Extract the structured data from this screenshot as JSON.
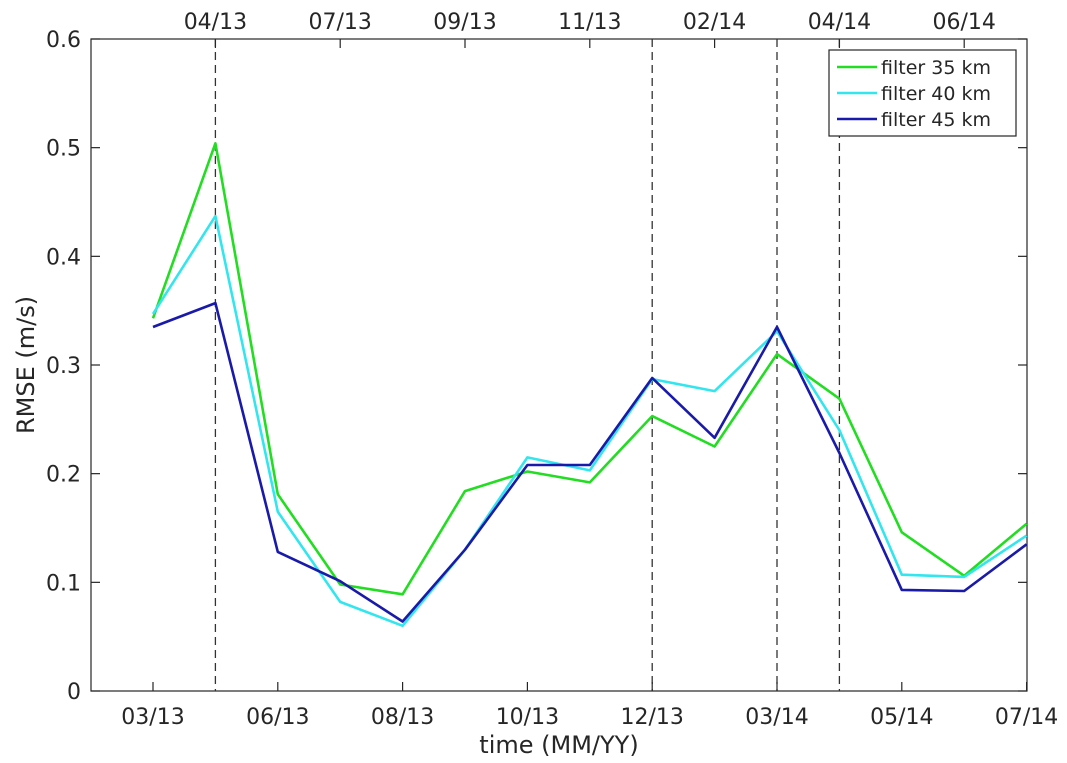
{
  "chart_data": {
    "type": "line",
    "xlabel": "time (MM/YY)",
    "ylabel": "RMSE (m/s)",
    "ylim": [
      0,
      0.6
    ],
    "yticks": [
      "0",
      "0.1",
      "0.2",
      "0.3",
      "0.4",
      "0.5",
      "0.6"
    ],
    "ytick_values": [
      0,
      0.1,
      0.2,
      0.3,
      0.4,
      0.5,
      0.6
    ],
    "x_count": 15,
    "bottom_ticks": [
      {
        "i": 0,
        "label": "03/13"
      },
      {
        "i": 2,
        "label": "06/13"
      },
      {
        "i": 4,
        "label": "08/13"
      },
      {
        "i": 6,
        "label": "10/13"
      },
      {
        "i": 8,
        "label": "12/13"
      },
      {
        "i": 10,
        "label": "03/14"
      },
      {
        "i": 12,
        "label": "05/14"
      },
      {
        "i": 14,
        "label": "07/14"
      }
    ],
    "top_ticks": [
      {
        "i": 1,
        "label": "04/13"
      },
      {
        "i": 3,
        "label": "07/13"
      },
      {
        "i": 5,
        "label": "09/13"
      },
      {
        "i": 7,
        "label": "11/13"
      },
      {
        "i": 9,
        "label": "02/14"
      },
      {
        "i": 11,
        "label": "04/14"
      },
      {
        "i": 13,
        "label": "06/14"
      }
    ],
    "vlines": [
      1,
      8,
      10,
      11
    ],
    "grid": false,
    "legend_position": "top-right",
    "series": [
      {
        "name": "filter 35 km",
        "color": "#22dd22",
        "values": [
          0.343,
          0.504,
          0.181,
          0.098,
          0.089,
          0.184,
          0.202,
          0.192,
          0.253,
          0.225,
          0.31,
          0.269,
          0.146,
          0.106,
          0.154
        ]
      },
      {
        "name": "filter 40 km",
        "color": "#33e6ee",
        "values": [
          0.347,
          0.437,
          0.165,
          0.082,
          0.06,
          0.13,
          0.215,
          0.203,
          0.287,
          0.276,
          0.331,
          0.24,
          0.107,
          0.105,
          0.143
        ]
      },
      {
        "name": "filter 45 km",
        "color": "#1a1aaa",
        "values": [
          0.335,
          0.357,
          0.128,
          0.101,
          0.064,
          0.13,
          0.208,
          0.208,
          0.288,
          0.233,
          0.335,
          0.219,
          0.093,
          0.092,
          0.135
        ]
      }
    ]
  }
}
